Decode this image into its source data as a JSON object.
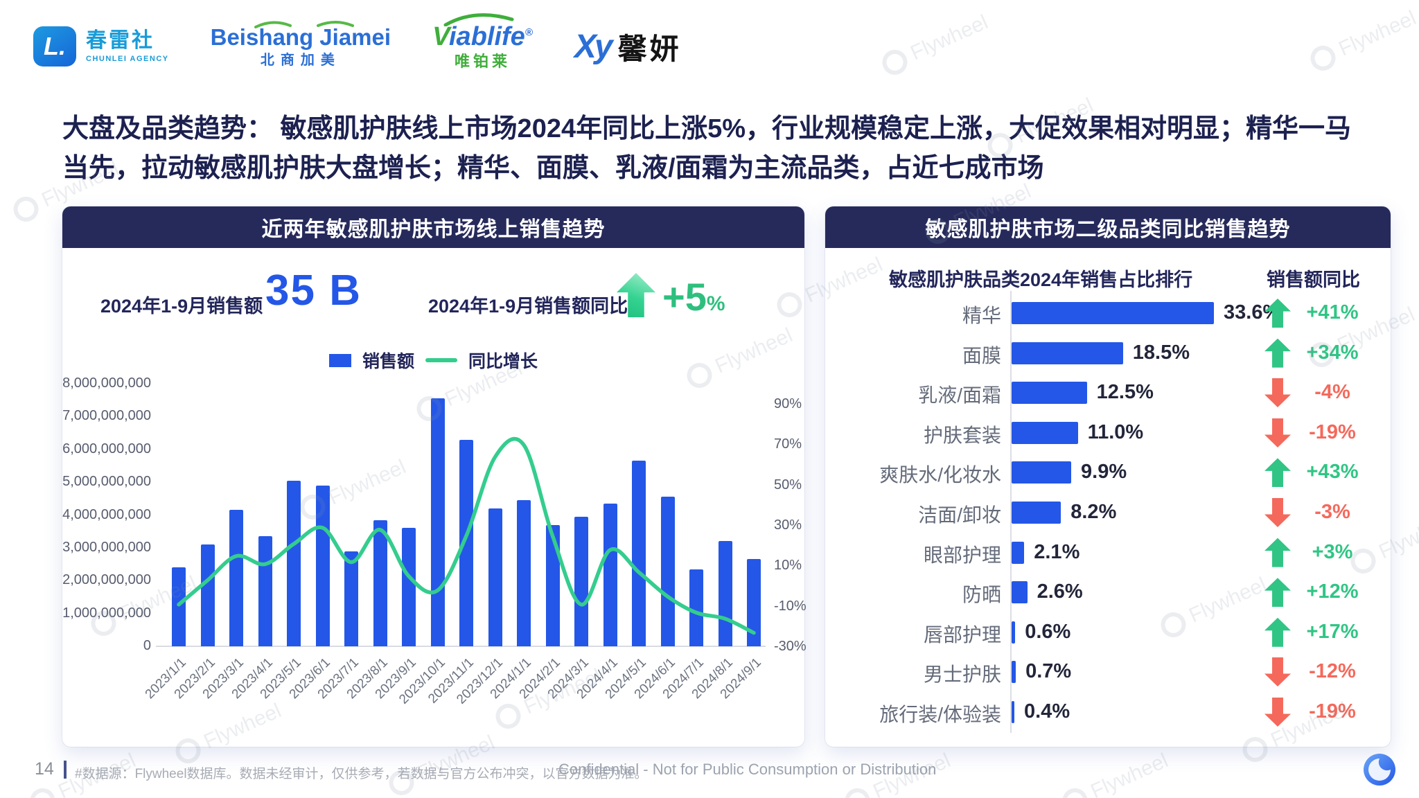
{
  "page": {
    "number": "14",
    "footer_note": "#数据源：Flywheel数据库。数据未经审计，仅供参考，若数据与官方公布冲突，以官方数据为准。",
    "confidential": "Confidential - Not for Public Consumption or Distribution",
    "watermark_text": "Flywheel"
  },
  "logos": {
    "chunlei": {
      "badge": "L.",
      "name": "春雷社",
      "sub": "CHUNLEI AGENCY"
    },
    "beishang": {
      "name": "Beishang Jiamei",
      "sub": "北商加美"
    },
    "viablife": {
      "v": "V",
      "rest": "iablife",
      "reg": "®",
      "sub": "唯铂莱"
    },
    "xinyan": {
      "mark": "Xy",
      "name": "馨妍"
    }
  },
  "title": {
    "line1": "大盘及品类趋势： 敏感肌护肤线上市场2024年同比上涨5%，行业规模稳定上涨，大促效果相对明显；精华一马",
    "line2": "当先，拉动敏感肌护肤大盘增长；精华、面膜、乳液/面霜为主流品类，占近七成市场"
  },
  "left_panel": {
    "header": "近两年敏感肌护肤市场线上销售趋势",
    "kpi_sales_label": "2024年1-9月销售额",
    "kpi_sales_value": "35 B",
    "kpi_yoy_label": "2024年1-9月销售额同比",
    "kpi_yoy_value": "+5",
    "kpi_yoy_unit": "%",
    "legend": [
      {
        "label": "销售额",
        "type": "bar"
      },
      {
        "label": "同比增长",
        "type": "line"
      }
    ]
  },
  "right_panel": {
    "header": "敏感肌护肤市场二级品类同比销售趋势",
    "sub_left": "敏感肌护肤品类2024年销售占比排行",
    "sub_right": "销售额同比",
    "rows": [
      {
        "label": "精华",
        "share": 33.6,
        "share_label": "33.6%",
        "dir": "up",
        "yoy_label": "+41%"
      },
      {
        "label": "面膜",
        "share": 18.5,
        "share_label": "18.5%",
        "dir": "up",
        "yoy_label": "+34%"
      },
      {
        "label": "乳液/面霜",
        "share": 12.5,
        "share_label": "12.5%",
        "dir": "down",
        "yoy_label": "-4%"
      },
      {
        "label": "护肤套装",
        "share": 11.0,
        "share_label": "11.0%",
        "dir": "down",
        "yoy_label": "-19%"
      },
      {
        "label": "爽肤水/化妆水",
        "share": 9.9,
        "share_label": "9.9%",
        "dir": "up",
        "yoy_label": "+43%"
      },
      {
        "label": "洁面/卸妆",
        "share": 8.2,
        "share_label": "8.2%",
        "dir": "down",
        "yoy_label": "-3%"
      },
      {
        "label": "眼部护理",
        "share": 2.1,
        "share_label": "2.1%",
        "dir": "up",
        "yoy_label": "+3%"
      },
      {
        "label": "防晒",
        "share": 2.6,
        "share_label": "2.6%",
        "dir": "up",
        "yoy_label": "+12%"
      },
      {
        "label": "唇部护理",
        "share": 0.6,
        "share_label": "0.6%",
        "dir": "up",
        "yoy_label": "+17%"
      },
      {
        "label": "男士护肤",
        "share": 0.7,
        "share_label": "0.7%",
        "dir": "down",
        "yoy_label": "-12%"
      },
      {
        "label": "旅行装/体验装",
        "share": 0.4,
        "share_label": "0.4%",
        "dir": "down",
        "yoy_label": "-19%"
      }
    ]
  },
  "chart_data": [
    {
      "type": "bar+line",
      "title": "近两年敏感肌护肤市场线上销售趋势",
      "categories": [
        "2023/1/1",
        "2023/2/1",
        "2023/3/1",
        "2023/4/1",
        "2023/5/1",
        "2023/6/1",
        "2023/7/1",
        "2023/8/1",
        "2023/9/1",
        "2023/10/1",
        "2023/11/1",
        "2023/12/1",
        "2024/1/1",
        "2024/2/1",
        "2024/3/1",
        "2024/4/1",
        "2024/5/1",
        "2024/6/1",
        "2024/7/1",
        "2024/8/1",
        "2024/9/1"
      ],
      "series": [
        {
          "name": "销售额",
          "type": "bar",
          "axis": "left",
          "values": [
            2400000000,
            3100000000,
            4150000000,
            3350000000,
            5050000000,
            4900000000,
            2900000000,
            3850000000,
            3600000000,
            7550000000,
            6300000000,
            4200000000,
            4450000000,
            3700000000,
            3950000000,
            4350000000,
            5650000000,
            4550000000,
            2350000000,
            3200000000,
            2650000000
          ]
        },
        {
          "name": "同比增长",
          "type": "line",
          "axis": "right",
          "values_pct": [
            -9,
            3,
            15,
            11,
            21,
            29,
            12,
            28,
            5,
            -2,
            25,
            64,
            70,
            25,
            -9,
            18,
            7,
            -5,
            -13,
            -16,
            -23
          ]
        }
      ],
      "left_axis": {
        "min": 0,
        "max": 8000000000,
        "tick_labels": [
          "8,000,000,000",
          "7,000,000,000",
          "6,000,000,000",
          "5,000,000,000",
          "4,000,000,000",
          "3,000,000,000",
          "2,000,000,000",
          "1,000,000,000",
          "0"
        ]
      },
      "right_axis": {
        "min": -30,
        "max": 90,
        "tick_values": [
          90,
          70,
          50,
          30,
          10,
          -10,
          -30
        ],
        "tick_labels": [
          "90%",
          "70%",
          "50%",
          "30%",
          "10%",
          "-10%",
          "-30%"
        ]
      },
      "legend_position": "top",
      "grid": false
    },
    {
      "type": "bar",
      "orientation": "horizontal",
      "title": "敏感肌护肤市场二级品类同比销售趋势",
      "categories": [
        "精华",
        "面膜",
        "乳液/面霜",
        "护肤套装",
        "爽肤水/化妆水",
        "洁面/卸妆",
        "眼部护理",
        "防晒",
        "唇部护理",
        "男士护肤",
        "旅行装/体验装"
      ],
      "values": [
        33.6,
        18.5,
        12.5,
        11.0,
        9.9,
        8.2,
        2.1,
        2.6,
        0.6,
        0.7,
        0.4
      ],
      "yoy_pct": [
        41,
        34,
        -4,
        -19,
        43,
        -3,
        3,
        12,
        17,
        -12,
        -19
      ],
      "xlim": [
        0,
        35
      ],
      "xlabel": "",
      "ylabel": ""
    }
  ],
  "colors": {
    "navy": "#262a5b",
    "title_text": "#1c2150",
    "blue": "#2457e7",
    "green_line": "#34cd8e",
    "green": "#30c584",
    "red": "#f4695b",
    "axis_text": "#575c6e",
    "footer_text": "#a7abb4"
  }
}
